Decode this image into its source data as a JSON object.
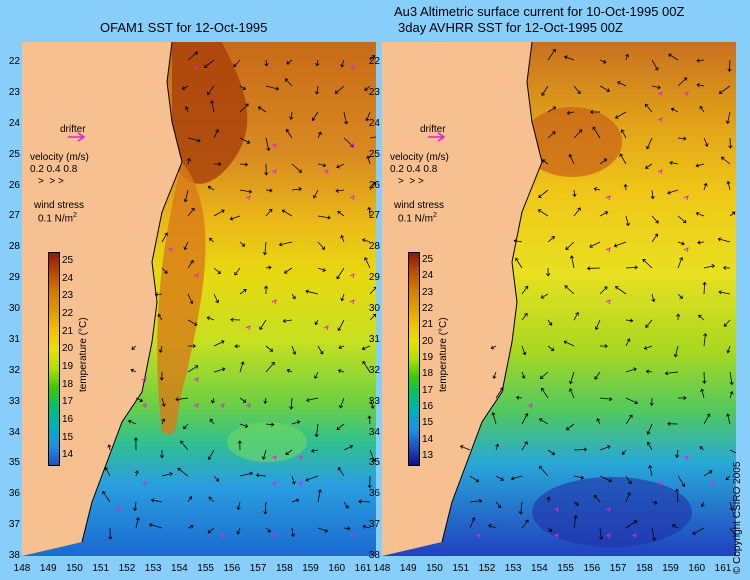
{
  "titles": {
    "left": "OFAM1 SST for 12-Oct-1995",
    "right_line1": "Au3 Altimetric surface current for 10-Oct-1995 00Z",
    "right_line2": "3day AVHRR SST for 12-Oct-1995 00Z"
  },
  "legend": {
    "drifter": "drifter",
    "velocity_title": "velocity (m/s)",
    "velocity_values": "0.2 0.4 0.8",
    "wind_title": "wind stress",
    "wind_value": "0.1 N/m",
    "wind_sup": "2"
  },
  "colorbar": {
    "label": "temperature (°C)",
    "left_ticks": [
      "25",
      "24",
      "23",
      "22",
      "21",
      "20",
      "19",
      "18",
      "17",
      "16",
      "15",
      "14"
    ],
    "right_ticks": [
      "25",
      "24",
      "23",
      "22",
      "21",
      "20",
      "19",
      "18",
      "17",
      "16",
      "15",
      "14",
      "13"
    ],
    "colors": [
      "#8b1a00",
      "#b84a00",
      "#d07a00",
      "#e09a00",
      "#f0c000",
      "#e8e000",
      "#b0e000",
      "#40c800",
      "#00c070",
      "#00b0c0",
      "#2090e0",
      "#2050c0",
      "#101080"
    ]
  },
  "y_axis": [
    "22",
    "23",
    "24",
    "25",
    "26",
    "27",
    "28",
    "29",
    "30",
    "31",
    "32",
    "33",
    "34",
    "35",
    "36",
    "37",
    "38"
  ],
  "x_axis_left": [
    "148",
    "149",
    "150",
    "151",
    "152",
    "153",
    "154",
    "155",
    "156",
    "157",
    "158",
    "159",
    "160",
    "161"
  ],
  "x_axis_right": [
    "148",
    "149",
    "150",
    "151",
    "152",
    "153",
    "154",
    "155",
    "156",
    "157",
    "158",
    "159",
    "160",
    "161"
  ],
  "copyright": "© Copyright CSIRO 2005",
  "colors": {
    "background": "#87cefa",
    "land": "#f7c090",
    "warm": "#c05a10",
    "orange": "#e08a20",
    "yellow": "#f2d010",
    "green": "#50c840",
    "cyan": "#20b8c8",
    "blue": "#2060d0"
  }
}
